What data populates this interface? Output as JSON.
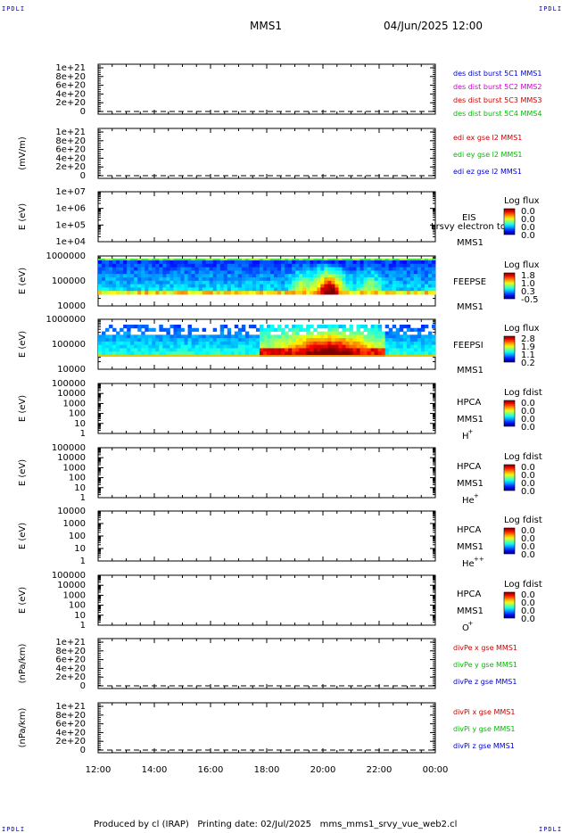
{
  "corners": {
    "tl": "IPDLI",
    "tr": "IPDLI",
    "bl": "IPDLI",
    "br": "IPDLI"
  },
  "header": {
    "mission": "MMS1",
    "datetime": "04/Jun/2025 12:00"
  },
  "footer": {
    "text": "Produced by cl (IRAP)   Printing date: 02/Jul/2025   mms_mms1_srvy_vue_web2.cl"
  },
  "chart_data": {
    "type": "stacked-timeseries",
    "x_ticks": [
      "12:00",
      "14:00",
      "16:00",
      "18:00",
      "20:00",
      "22:00",
      "00:00"
    ],
    "panels": [
      {
        "kind": "line",
        "ylabel": "",
        "yticks": [
          "1e+21",
          "8e+20",
          "6e+20",
          "4e+20",
          "2e+20",
          "0"
        ],
        "legend": [
          {
            "text": "des dist burst 5C1 MMS1",
            "color": "#0000cc"
          },
          {
            "text": "des dist burst 5C2 MMS2",
            "color": "#cc00cc"
          },
          {
            "text": "des dist burst 5C3 MMS3",
            "color": "#cc0000"
          },
          {
            "text": "des dist burst 5C4 MMS4",
            "color": "#00bb00"
          }
        ]
      },
      {
        "kind": "line",
        "ylabel": "(mV/m)",
        "yticks": [
          "1e+21",
          "8e+20",
          "6e+20",
          "4e+20",
          "2e+20",
          "0"
        ],
        "legend": [
          {
            "text": "edi ex gse l2 MMS1",
            "color": "#cc0000"
          },
          {
            "text": "edi ey gse l2 MMS1",
            "color": "#00bb00"
          },
          {
            "text": "edi ez gse l2 MMS1",
            "color": "#0000cc"
          }
        ]
      },
      {
        "kind": "spec",
        "ylabel": "E (eV)",
        "yticks": [
          "1e+07",
          "1e+06",
          "1e+05",
          "1e+04"
        ],
        "right": [
          "EIS",
          "MMS1"
        ],
        "overlay": "Lrsvy electron to",
        "cbar": {
          "title": "Log flux",
          "labels": [
            "0.0",
            "0.0",
            "0.0",
            "0.0"
          ]
        }
      },
      {
        "kind": "spec",
        "ylabel": "E (eV)",
        "yticks": [
          "1000000",
          "100000",
          "10000"
        ],
        "right": [
          "FEEPSE",
          "MMS1"
        ],
        "cbar": {
          "title": "Log flux",
          "labels": [
            "1.8",
            "1.0",
            "0.3",
            "-0.5"
          ]
        }
      },
      {
        "kind": "spec",
        "ylabel": "E (eV)",
        "yticks": [
          "1000000",
          "100000",
          "10000"
        ],
        "right": [
          "FEEPSI",
          "MMS1"
        ],
        "cbar": {
          "title": "Log flux",
          "labels": [
            "2.8",
            "1.9",
            "1.1",
            "0.2"
          ]
        }
      },
      {
        "kind": "spec",
        "ylabel": "E (eV)",
        "yticks": [
          "100000",
          "10000",
          "1000",
          "100",
          "10",
          "1"
        ],
        "right": [
          "HPCA",
          "MMS1",
          "H",
          "+"
        ],
        "cbar": {
          "title": "Log fdist",
          "labels": [
            "0.0",
            "0.0",
            "0.0",
            "0.0"
          ]
        }
      },
      {
        "kind": "spec",
        "ylabel": "E (eV)",
        "yticks": [
          "100000",
          "10000",
          "1000",
          "100",
          "10",
          "1"
        ],
        "right": [
          "HPCA",
          "MMS1",
          "He",
          "+"
        ],
        "cbar": {
          "title": "Log fdist",
          "labels": [
            "0.0",
            "0.0",
            "0.0",
            "0.0"
          ]
        }
      },
      {
        "kind": "spec",
        "ylabel": "E (eV)",
        "yticks": [
          "10000",
          "1000",
          "100",
          "10",
          "1"
        ],
        "right": [
          "HPCA",
          "MMS1",
          "He",
          "++"
        ],
        "cbar": {
          "title": "Log fdist",
          "labels": [
            "0.0",
            "0.0",
            "0.0",
            "0.0"
          ]
        }
      },
      {
        "kind": "spec",
        "ylabel": "E (eV)",
        "yticks": [
          "100000",
          "10000",
          "1000",
          "100",
          "10",
          "1"
        ],
        "right": [
          "HPCA",
          "MMS1",
          "O",
          "+"
        ],
        "cbar": {
          "title": "Log fdist",
          "labels": [
            "0.0",
            "0.0",
            "0.0",
            "0.0"
          ]
        }
      },
      {
        "kind": "line",
        "ylabel": "(nPa/km)",
        "yticks": [
          "1e+21",
          "8e+20",
          "6e+20",
          "4e+20",
          "2e+20",
          "0"
        ],
        "legend": [
          {
            "text": "divPe x gse MMS1",
            "color": "#cc0000"
          },
          {
            "text": "divPe y gse MMS1",
            "color": "#00bb00"
          },
          {
            "text": "divPe z gse MMS1",
            "color": "#0000cc"
          }
        ]
      },
      {
        "kind": "line",
        "ylabel": "(nPa/km)",
        "yticks": [
          "1e+21",
          "8e+20",
          "6e+20",
          "4e+20",
          "2e+20",
          "0"
        ],
        "legend": [
          {
            "text": "divPi x gse MMS1",
            "color": "#cc0000"
          },
          {
            "text": "divPi y gse MMS1",
            "color": "#00bb00"
          },
          {
            "text": "divPi z gse MMS1",
            "color": "#0000cc"
          }
        ]
      }
    ]
  }
}
